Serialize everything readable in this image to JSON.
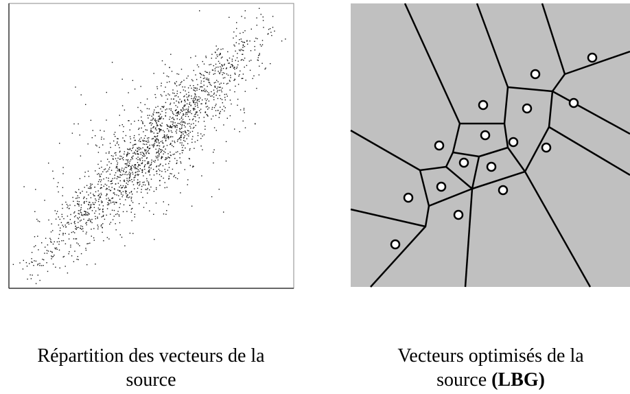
{
  "figure": {
    "left": {
      "caption": [
        "Répartition des vecteurs de la",
        "source"
      ]
    },
    "right": {
      "caption": [
        "Vecteurs optimisés de la",
        "source"
      ],
      "caption_bold": "(LBG)"
    }
  }
}
